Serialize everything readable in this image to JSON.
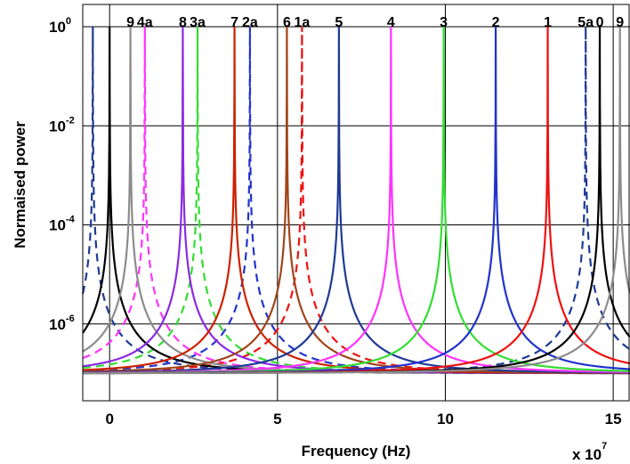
{
  "chart_data": {
    "type": "line",
    "title": "",
    "xlabel": "Frequency (Hz)",
    "ylabel": "Normaised power",
    "x_multiplier": "x 10",
    "x_multiplier_exponent": "7",
    "xlim": [
      -0.8,
      15.5
    ],
    "ylim_log10": [
      -7.55,
      0.45
    ],
    "y_scale": "log",
    "grid": true,
    "x_ticks": [
      {
        "value": 0,
        "label": "0"
      },
      {
        "value": 5,
        "label": "5"
      },
      {
        "value": 10,
        "label": "10"
      },
      {
        "value": 15,
        "label": "15"
      }
    ],
    "y_ticks": [
      {
        "exp": 0,
        "base": "10",
        "sup": "0"
      },
      {
        "exp": -2,
        "base": "10",
        "sup": "-2"
      },
      {
        "exp": -4,
        "base": "10",
        "sup": "-4"
      },
      {
        "exp": -6,
        "base": "10",
        "sup": "-6"
      }
    ],
    "series": [
      {
        "label": "0",
        "peak_x": 0.0,
        "color": "#000000",
        "dashed": false
      },
      {
        "label": "9",
        "peak_x": 0.62,
        "color": "#8c8c8c",
        "dashed": false
      },
      {
        "label": "8",
        "peak_x": 2.18,
        "color": "#8a2be2",
        "dashed": false
      },
      {
        "label": "7",
        "peak_x": 3.72,
        "color": "#cc2200",
        "dashed": false
      },
      {
        "label": "6",
        "peak_x": 5.28,
        "color": "#a0441b",
        "dashed": false
      },
      {
        "label": "5",
        "peak_x": 6.83,
        "color": "#1f3a93",
        "dashed": false
      },
      {
        "label": "4",
        "peak_x": 8.38,
        "color": "#ff33ff",
        "dashed": false
      },
      {
        "label": "3",
        "peak_x": 9.95,
        "color": "#33dd33",
        "dashed": false
      },
      {
        "label": "2",
        "peak_x": 11.5,
        "color": "#2233cc",
        "dashed": false
      },
      {
        "label": "1",
        "peak_x": 13.05,
        "color": "#ee1111",
        "dashed": false
      },
      {
        "label": "0",
        "peak_x": 14.6,
        "color": "#000000",
        "dashed": false
      },
      {
        "label": "9",
        "peak_x": 15.2,
        "color": "#8c8c8c",
        "dashed": false
      },
      {
        "label": "",
        "peak_x": -0.5,
        "color": "#1f3a93",
        "dashed": true
      },
      {
        "label": "4a",
        "peak_x": 1.05,
        "color": "#ff33ff",
        "dashed": true
      },
      {
        "label": "3a",
        "peak_x": 2.62,
        "color": "#33dd33",
        "dashed": true
      },
      {
        "label": "2a",
        "peak_x": 4.18,
        "color": "#2233cc",
        "dashed": true
      },
      {
        "label": "1a",
        "peak_x": 5.73,
        "color": "#ee1111",
        "dashed": true
      },
      {
        "label": "5a",
        "peak_x": 14.18,
        "color": "#1f3a93",
        "dashed": true
      }
    ],
    "peak_labels": [
      {
        "text": "9",
        "x": 0.62
      },
      {
        "text": "4a",
        "x": 1.05
      },
      {
        "text": "8",
        "x": 2.18
      },
      {
        "text": "3a",
        "x": 2.62
      },
      {
        "text": "7",
        "x": 3.72
      },
      {
        "text": "2a",
        "x": 4.18
      },
      {
        "text": "6",
        "x": 5.28
      },
      {
        "text": "1a",
        "x": 5.73
      },
      {
        "text": "5",
        "x": 6.83
      },
      {
        "text": "4",
        "x": 8.38
      },
      {
        "text": "3",
        "x": 9.95
      },
      {
        "text": "2",
        "x": 11.5
      },
      {
        "text": "1",
        "x": 13.05
      },
      {
        "text": "5a",
        "x": 14.18
      },
      {
        "text": "0",
        "x": 14.6
      },
      {
        "text": "9",
        "x": 15.2
      }
    ],
    "lorentzian_floor": 1e-07,
    "lorentzian_halfwidth": 0.0006
  }
}
